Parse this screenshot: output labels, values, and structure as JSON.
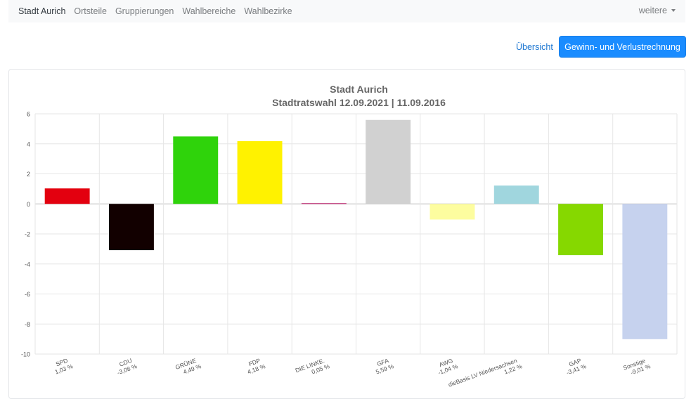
{
  "nav": {
    "items": [
      "Stadt Aurich",
      "Ortsteile",
      "Gruppierungen",
      "Wahlbereiche",
      "Wahlbezirke"
    ],
    "more_label": "weitere"
  },
  "actions": {
    "overview_label": "Übersicht",
    "gain_loss_label": "Gewinn- und Verlustrechnung"
  },
  "colors": {
    "nav_bg": "#f8f9fa",
    "primary": "#1a8cff",
    "link": "#1a75d1"
  },
  "chart_data": {
    "type": "bar",
    "title": "Stadt Aurich",
    "subtitle": "Stadtratswahl 12.09.2021  | 11.09.2016",
    "ylim": [
      -10,
      6
    ],
    "yticks": [
      6,
      4,
      2,
      0,
      -2,
      -4,
      -6,
      -8,
      -10
    ],
    "grid": true,
    "categories": [
      "SPD",
      "CDU",
      "GRÜNE",
      "FDP",
      "DIE LINKE.",
      "GFA",
      "AWG",
      "dieBasis LV Niedersachsen",
      "GAP",
      "Sonstige"
    ],
    "value_labels": [
      "1,03 %",
      "-3,08 %",
      "4,49 %",
      "4,18 %",
      "0,05 %",
      "5,59 %",
      "-1,04 %",
      "1,22 %",
      "-3,41 %",
      "-9,01 %"
    ],
    "values": [
      1.03,
      -3.08,
      4.49,
      4.18,
      0.05,
      5.59,
      -1.04,
      1.22,
      -3.41,
      -9.01
    ],
    "colors": [
      "#e3000f",
      "#120000",
      "#2fd30b",
      "#fff200",
      "#be3075",
      "#d1d1d1",
      "#fdfd9f",
      "#a0d6de",
      "#86d800",
      "#c6d2ee"
    ]
  }
}
